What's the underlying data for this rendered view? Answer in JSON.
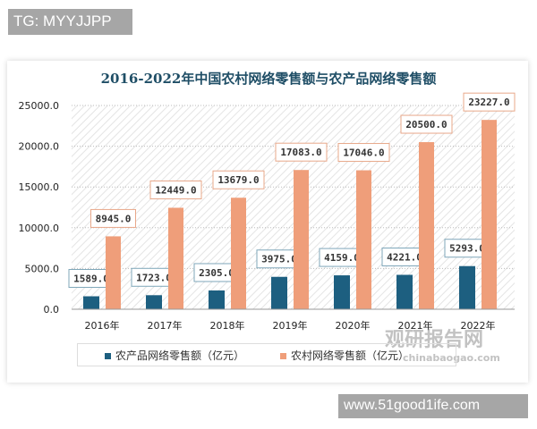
{
  "watermark_top": "TG: MYYJJPP",
  "watermark_bottom": "www.51good1ife.com",
  "logo": {
    "name": "观研报告网",
    "url": "chinabaogao.com"
  },
  "chart_data": {
    "type": "bar",
    "title": "2016-2022年中国农村网络零售额与农产品网络零售额",
    "categories": [
      "2016年",
      "2017年",
      "2018年",
      "2019年",
      "2020年",
      "2021年",
      "2022年"
    ],
    "series": [
      {
        "name": "农产品网络零售额（亿元）",
        "color": "#1d5f80",
        "values": [
          1589.0,
          1723.0,
          2305.0,
          3975.0,
          4159.0,
          4221.0,
          5293.0
        ]
      },
      {
        "name": "农村网络零售额（亿元）",
        "color": "#ef9e7a",
        "values": [
          8945.0,
          12449.0,
          13679.0,
          17083.0,
          17046.0,
          20500.0,
          23227.0
        ]
      }
    ],
    "ylim": [
      0,
      25000
    ],
    "yticks": [
      "0.0",
      "5000.0",
      "10000.0",
      "15000.0",
      "20000.0",
      "25000.0"
    ],
    "grid": true,
    "legend": "bottom"
  }
}
